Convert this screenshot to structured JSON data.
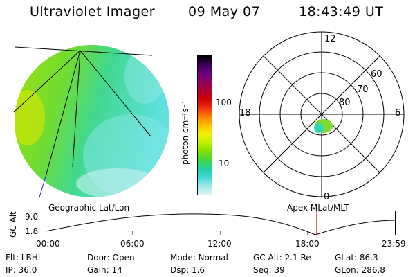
{
  "header": {
    "instrument": "Ultraviolet Imager",
    "date": "09 May 07",
    "time": "18:43:49 UT"
  },
  "colorbar": {
    "unit_label": "photon cm⁻²s⁻¹",
    "tick_labels": [
      "100",
      "10"
    ],
    "colors": [
      "#000000",
      "#3a0057",
      "#6a0080",
      "#8f0060",
      "#b00030",
      "#d00000",
      "#f03010",
      "#ff8000",
      "#ffc000",
      "#f0f000",
      "#c0f000",
      "#80e000",
      "#40d840",
      "#20d0a0",
      "#40d8d8",
      "#a0e8e8",
      "#e0f4f4"
    ]
  },
  "image_panel": {
    "title": "Geographic Lat/Lon",
    "disk_color_left": "#90e020",
    "disk_color_right": "#40d8c8"
  },
  "polar_panel": {
    "title": "Apex MLat/MLT",
    "mlt_labels": {
      "top": "12",
      "bottom": "0",
      "left": "18",
      "right": "6"
    },
    "lat_labels": [
      "60",
      "70",
      "80"
    ]
  },
  "altitude_plot": {
    "ylabel": "GC Alt",
    "yticks": [
      "9.0",
      "1.8"
    ],
    "xticks": [
      "00:00",
      "06:00",
      "12:00",
      "18:00",
      "23:59"
    ],
    "current_time_marker_color": "#cc0000"
  },
  "info": {
    "flt": "Flt: LBHL",
    "ip": "IP: 36.0",
    "door": "Door: Open",
    "gain": "Gain: 14",
    "mode": "Mode: Normal",
    "dsp": "Dsp:    1.6",
    "gc_alt": "GC Alt: 2.1 Re",
    "seq": "Seq: 39",
    "glat": "GLat:  86.3",
    "glon": "GLon: 286.8"
  }
}
